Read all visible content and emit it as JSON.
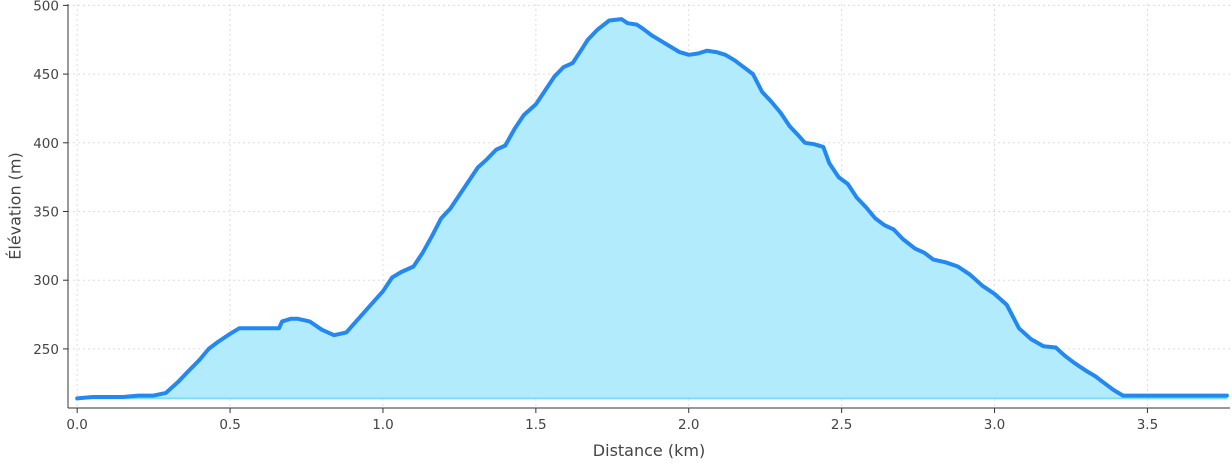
{
  "chart_data": {
    "type": "area",
    "title": "",
    "xlabel": "Distance (km)",
    "ylabel": "Élévation (m)",
    "xlim": [
      -0.03,
      3.77
    ],
    "ylim": [
      207,
      501
    ],
    "xticks": [
      0.0,
      0.5,
      1.0,
      1.5,
      2.0,
      2.5,
      3.0,
      3.5
    ],
    "xtick_labels": [
      "0.0",
      "0.5",
      "1.0",
      "1.5",
      "2.0",
      "2.5",
      "3.0",
      "3.5"
    ],
    "yticks": [
      250,
      300,
      350,
      400,
      450,
      500
    ],
    "ytick_labels": [
      "250",
      "300",
      "350",
      "400",
      "450",
      "500"
    ],
    "grid": true,
    "fill_baseline": 214,
    "colors": {
      "line": "#2389f0",
      "fill": "#b2ebfb",
      "baseline": "#7fdcf5"
    },
    "series": [
      {
        "x": [
          0.0,
          0.05,
          0.1,
          0.15,
          0.2,
          0.25,
          0.29,
          0.33,
          0.36,
          0.4,
          0.43,
          0.46,
          0.5,
          0.53,
          0.57,
          0.62,
          0.66,
          0.67,
          0.7,
          0.72,
          0.76,
          0.8,
          0.84,
          0.88,
          0.92,
          0.96,
          1.0,
          1.03,
          1.06,
          1.1,
          1.13,
          1.16,
          1.19,
          1.22,
          1.25,
          1.28,
          1.31,
          1.34,
          1.37,
          1.4,
          1.43,
          1.46,
          1.5,
          1.53,
          1.56,
          1.59,
          1.62,
          1.65,
          1.67,
          1.7,
          1.74,
          1.78,
          1.8,
          1.83,
          1.85,
          1.88,
          1.91,
          1.94,
          1.97,
          2.0,
          2.03,
          2.06,
          2.09,
          2.12,
          2.15,
          2.18,
          2.21,
          2.24,
          2.27,
          2.3,
          2.33,
          2.36,
          2.38,
          2.41,
          2.44,
          2.46,
          2.49,
          2.52,
          2.55,
          2.58,
          2.61,
          2.64,
          2.67,
          2.7,
          2.74,
          2.77,
          2.8,
          2.84,
          2.88,
          2.92,
          2.96,
          3.0,
          3.04,
          3.08,
          3.12,
          3.16,
          3.2,
          3.23,
          3.26,
          3.3,
          3.33,
          3.36,
          3.39,
          3.42,
          3.45,
          3.48,
          3.52,
          3.55,
          3.58,
          3.61,
          3.64,
          3.67,
          3.7,
          3.73,
          3.76
        ],
        "y": [
          214,
          215,
          215,
          215,
          216,
          216,
          218,
          226,
          233,
          242,
          250,
          255,
          261,
          265,
          265,
          265,
          265,
          270,
          272,
          272,
          270,
          264,
          260,
          262,
          272,
          282,
          292,
          302,
          306,
          310,
          320,
          332,
          345,
          352,
          362,
          372,
          382,
          388,
          395,
          398,
          410,
          420,
          428,
          438,
          448,
          455,
          458,
          468,
          475,
          482,
          489,
          490,
          487,
          486,
          483,
          478,
          474,
          470,
          466,
          464,
          465,
          467,
          466,
          464,
          460,
          455,
          450,
          437,
          430,
          422,
          412,
          405,
          400,
          399,
          397,
          385,
          375,
          370,
          360,
          353,
          345,
          340,
          337,
          330,
          323,
          320,
          315,
          313,
          310,
          304,
          296,
          290,
          282,
          265,
          257,
          252,
          251,
          245,
          240,
          234,
          230,
          225,
          220,
          216,
          216,
          216,
          216,
          216,
          216,
          216,
          216,
          216,
          216,
          216,
          216
        ],
        "y_note_skip": true
      }
    ]
  }
}
